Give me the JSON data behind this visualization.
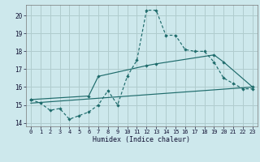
{
  "xlabel": "Humidex (Indice chaleur)",
  "background_color": "#cde8ec",
  "grid_color": "#b0ccce",
  "line_color": "#1e6b6b",
  "xlim": [
    -0.5,
    23.5
  ],
  "ylim": [
    13.8,
    20.6
  ],
  "xticks": [
    0,
    1,
    2,
    3,
    4,
    5,
    6,
    7,
    8,
    9,
    10,
    11,
    12,
    13,
    14,
    15,
    16,
    17,
    18,
    19,
    20,
    21,
    22,
    23
  ],
  "yticks": [
    14,
    15,
    16,
    17,
    18,
    19,
    20
  ],
  "line1_x": [
    0,
    1,
    2,
    3,
    4,
    5,
    6,
    7,
    8,
    9,
    10,
    11,
    12,
    13,
    14,
    15,
    16,
    17,
    18,
    19,
    20,
    21,
    22,
    23
  ],
  "line1_y": [
    15.3,
    15.1,
    14.7,
    14.8,
    14.2,
    14.4,
    14.6,
    15.0,
    15.8,
    15.0,
    16.6,
    17.5,
    20.3,
    20.3,
    18.9,
    18.9,
    18.1,
    18.0,
    18.0,
    17.4,
    16.5,
    16.2,
    15.9,
    15.9
  ],
  "line2_x": [
    0,
    6,
    7,
    12,
    13,
    19,
    20,
    23
  ],
  "line2_y": [
    15.3,
    15.5,
    16.6,
    17.2,
    17.3,
    17.8,
    17.4,
    16.0
  ],
  "line3_x": [
    0,
    23
  ],
  "line3_y": [
    15.1,
    16.0
  ]
}
